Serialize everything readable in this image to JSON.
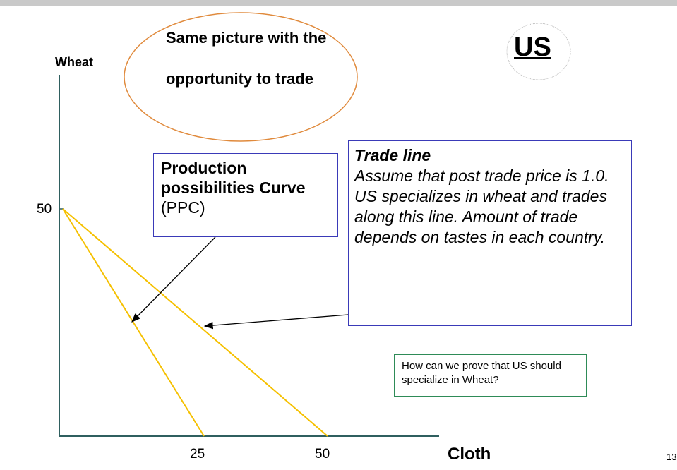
{
  "oval": {
    "line1": "Same picture with the",
    "line2": "opportunity to trade"
  },
  "country_label": "US",
  "axes": {
    "y_label": "Wheat",
    "x_label": "Cloth",
    "y_tick": "50",
    "x_ticks": [
      "25",
      "50"
    ]
  },
  "ppc_box": {
    "bold_text": "Production possibilities Curve",
    "normal_text": " (PPC)"
  },
  "trade_box": {
    "title": "Trade line",
    "body": "Assume that post trade price is 1.0.  US specializes in wheat and trades along this line.  Amount of trade depends on tastes in each country."
  },
  "question_box": {
    "text": "How can we prove that US should specialize in Wheat?"
  },
  "slide_number": "13",
  "colors": {
    "ppc_line": "#f5c000",
    "axes": "#2f5f5f",
    "oval": "#e08a3c",
    "box_border": "#3a3ab8",
    "question_border": "#2e8b57"
  }
}
